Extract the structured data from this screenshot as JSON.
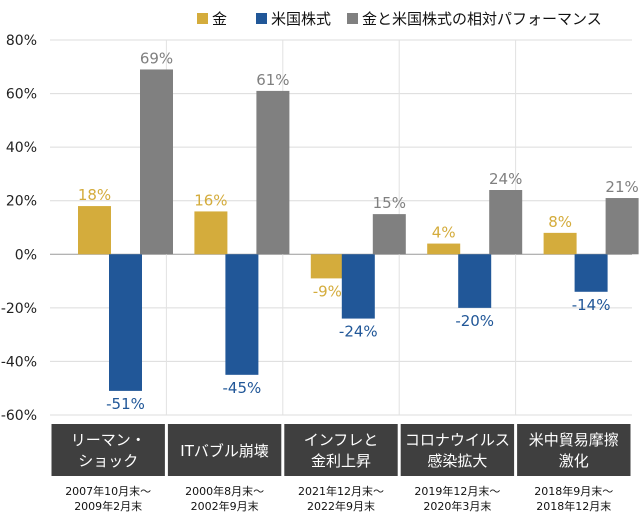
{
  "chart_data": {
    "type": "bar",
    "title": "",
    "xlabel": "",
    "ylabel": "",
    "ylim": [
      -60,
      80
    ],
    "yticks": [
      80,
      60,
      40,
      20,
      0,
      -20,
      -40,
      -60
    ],
    "ytick_labels": [
      "80%",
      "60%",
      "40%",
      "20%",
      "0%",
      "-20%",
      "-40%",
      "-60%"
    ],
    "grid": true,
    "legend": "top-right",
    "categories": [
      {
        "lines": [
          "リーマン・",
          "ショック"
        ],
        "period": [
          "2007年10月末～",
          "2009年2月末"
        ]
      },
      {
        "lines": [
          "ITバブル崩壊"
        ],
        "period": [
          "2000年8月末～",
          "2002年9月末"
        ]
      },
      {
        "lines": [
          "インフレと",
          "金利上昇"
        ],
        "period": [
          "2021年12月末～",
          "2022年9月末"
        ]
      },
      {
        "lines": [
          "コロナウイルス",
          "感染拡大"
        ],
        "period": [
          "2019年12月末～",
          "2020年3月末"
        ]
      },
      {
        "lines": [
          "米中貿易摩擦",
          "激化"
        ],
        "period": [
          "2018年9月末～",
          "2018年12月末"
        ]
      }
    ],
    "series": [
      {
        "name": "金",
        "color": "#d4ac3c",
        "values": [
          18,
          16,
          -9,
          4,
          8
        ],
        "labels": [
          "18%",
          "16%",
          "-9%",
          "4%",
          "8%"
        ]
      },
      {
        "name": "米国株式",
        "color": "#215798",
        "values": [
          -51,
          -45,
          -24,
          -20,
          -14
        ],
        "labels": [
          "-51%",
          "-45%",
          "-24%",
          "-20%",
          "-14%"
        ]
      },
      {
        "name": "金と米国株式の相対パフォーマンス",
        "color": "#808080",
        "values": [
          69,
          61,
          15,
          24,
          21
        ],
        "labels": [
          "69%",
          "61%",
          "15%",
          "24%",
          "21%"
        ]
      }
    ]
  }
}
